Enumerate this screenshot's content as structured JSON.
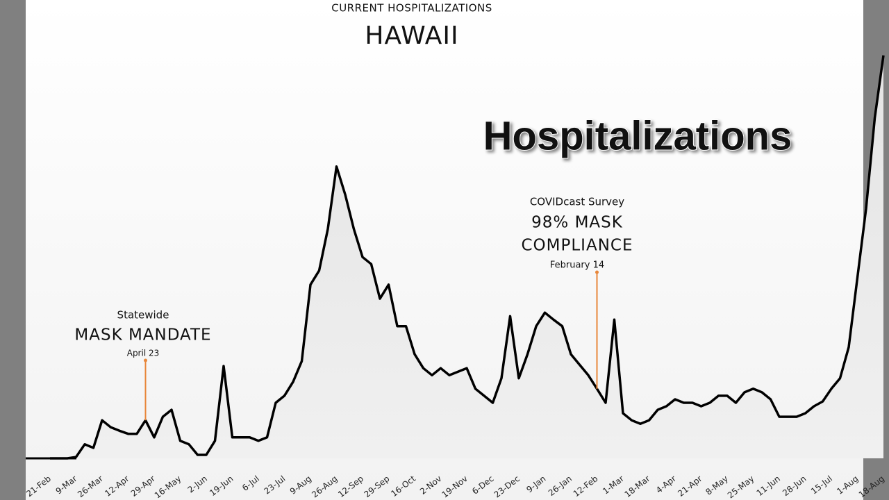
{
  "chart_data": {
    "type": "line",
    "supertitle": "CURRENT HOSPITALIZATIONS",
    "title": "HAWAII",
    "overlay_title": "Hospitalizations",
    "annotations": [
      {
        "lines": [
          "Statewide",
          "MASK MANDATE",
          "April 23"
        ],
        "index": 11
      },
      {
        "lines": [
          "COVIDcast Survey",
          "98% MASK",
          "COMPLIANCE",
          "February 14"
        ],
        "index": 63
      }
    ],
    "categories": [
      "21-Feb",
      null,
      null,
      "9-Mar",
      null,
      null,
      "26-Mar",
      null,
      null,
      "12-Apr",
      null,
      null,
      "29-Apr",
      null,
      null,
      "16-May",
      null,
      null,
      "2-Jun",
      null,
      null,
      "19-Jun",
      null,
      null,
      "6-Jul",
      null,
      null,
      "23-Jul",
      null,
      null,
      "9-Aug",
      null,
      null,
      "26-Aug",
      null,
      null,
      "12-Sep",
      null,
      null,
      "29-Sep",
      null,
      null,
      "16-Oct",
      null,
      null,
      "2-Nov",
      null,
      null,
      "19-Nov",
      null,
      null,
      "6-Dec",
      null,
      null,
      "23-Dec",
      null,
      null,
      "9-Jan",
      null,
      null,
      "26-Jan",
      null,
      null,
      "12-Feb",
      null,
      null,
      "1-Mar",
      null,
      null,
      "18-Mar",
      null,
      null,
      "4-Apr",
      null,
      null,
      "21-Apr",
      null,
      null,
      "8-May",
      null,
      null,
      "25-May",
      null,
      null,
      "11-Jun",
      null,
      null,
      "28-Jun",
      null,
      null,
      "15-Jul",
      null,
      null,
      "1-Aug",
      null,
      null,
      "18-Aug"
    ],
    "values": [
      0,
      0,
      0,
      0.3,
      3.2,
      2.4,
      8.7,
      7.1,
      6.3,
      5.6,
      5.6,
      8.7,
      4.8,
      9.5,
      11.1,
      4.0,
      3.2,
      0.8,
      0.8,
      4.0,
      21.1,
      4.8,
      4.8,
      4.8,
      4.0,
      4.8,
      12.7,
      14.3,
      17.5,
      22.2,
      39.7,
      42.9,
      52.4,
      66.7,
      60.3,
      52.4,
      46.0,
      44.4,
      36.5,
      39.7,
      30.2,
      30.2,
      23.8,
      20.6,
      19.0,
      20.6,
      19.0,
      19.8,
      20.6,
      15.9,
      14.3,
      12.7,
      18.3,
      32.5,
      18.3,
      23.8,
      30.2,
      33.3,
      31.7,
      30.2,
      23.8,
      21.4,
      19.0,
      15.9,
      12.7,
      31.7,
      10.3,
      8.7,
      7.9,
      8.7,
      11.1,
      11.9,
      13.5,
      12.7,
      12.7,
      11.9,
      12.7,
      14.3,
      14.3,
      12.7,
      15.1,
      15.9,
      15.1,
      13.5,
      9.5,
      9.5,
      9.5,
      10.3,
      11.9,
      13.0,
      15.9,
      18.3,
      25.4,
      41.3,
      57.1,
      77.8,
      92.1
    ],
    "color": "#000000",
    "ylim": [
      0,
      100
    ]
  }
}
